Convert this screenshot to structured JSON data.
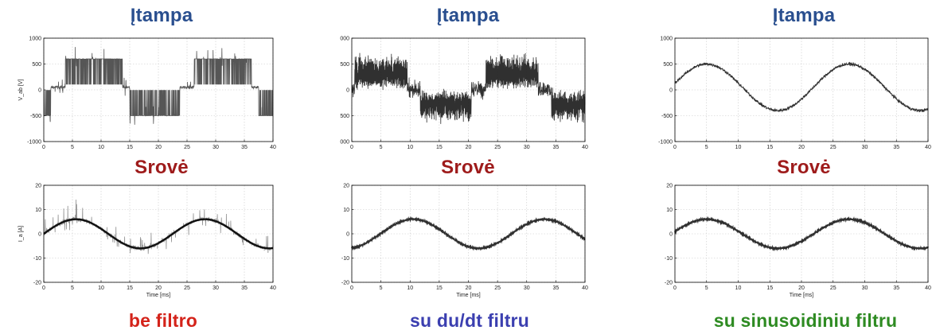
{
  "columns": [
    {
      "voltage_title": "Įtampa",
      "current_title": "Srovė",
      "caption": "be filtro",
      "caption_color": "#d4231a"
    },
    {
      "voltage_title": "Įtampa",
      "current_title": "Srovė",
      "caption": "su du/dt filtru",
      "caption_color": "#3b3fb0"
    },
    {
      "voltage_title": "Įtampa",
      "current_title": "Srovė",
      "caption": "su sinusoidiniu filtru",
      "caption_color": "#2e8b22"
    }
  ],
  "chart_data": [
    {
      "type": "line",
      "panel": "voltage-no-filter",
      "ylabel": "V_ab [V]",
      "xlabel": "",
      "xlim": [
        0,
        40
      ],
      "ylim": [
        -1000,
        1000
      ],
      "x_ticks": [
        "0",
        "5",
        "10",
        "15",
        "20",
        "25",
        "30",
        "35",
        "40"
      ],
      "y_ticks": [
        "1000",
        "500",
        "0",
        "-500",
        "-1000"
      ],
      "grid": true,
      "waveform": "six-step PWM with high-frequency switching noise",
      "x": [
        0,
        5,
        10,
        13.75,
        18.75,
        23.75,
        27.5,
        32.5,
        37.5,
        40
      ],
      "y": [
        -500,
        600,
        600,
        50,
        -500,
        50,
        600,
        600,
        50,
        -500
      ]
    },
    {
      "type": "line",
      "panel": "current-no-filter",
      "ylabel": "I_a [A]",
      "xlabel": "Time [ms]",
      "xlim": [
        0,
        40
      ],
      "ylim": [
        -20,
        20
      ],
      "x_ticks": [
        "0",
        "5",
        "10",
        "15",
        "20",
        "25",
        "30",
        "35",
        "40"
      ],
      "y_ticks": [
        "20",
        "10",
        "0",
        "-10",
        "-20"
      ],
      "grid": true,
      "waveform": "sine with large spiky noise",
      "amplitude": 6,
      "period_ms": 22.5,
      "x": [
        0,
        5,
        10,
        16.25,
        22.5,
        27.5,
        33.75,
        40
      ],
      "y": [
        0,
        5.9,
        2.5,
        -6,
        0,
        5.9,
        -1,
        -6
      ]
    },
    {
      "type": "line",
      "panel": "voltage-dudt-filter",
      "ylabel": "",
      "xlabel": "",
      "xlim": [
        0,
        40
      ],
      "ylim": [
        -1000,
        1000
      ],
      "x_ticks": [
        "0",
        "5",
        "10",
        "15",
        "20",
        "25",
        "30",
        "35",
        "40"
      ],
      "y_ticks": [
        "000",
        "500",
        "0",
        "500",
        "000"
      ],
      "grid": true,
      "waveform": "six-step PWM with dense ripple",
      "x": [
        0,
        5,
        10,
        15,
        20,
        25,
        30,
        35,
        40
      ],
      "y": [
        500,
        500,
        0,
        -500,
        0,
        500,
        0,
        -500,
        -500
      ]
    },
    {
      "type": "line",
      "panel": "current-dudt-filter",
      "ylabel": "",
      "xlabel": "Time [ms]",
      "xlim": [
        0,
        40
      ],
      "ylim": [
        -20,
        20
      ],
      "x_ticks": [
        "0",
        "5",
        "10",
        "15",
        "20",
        "25",
        "30",
        "35",
        "40"
      ],
      "y_ticks": [
        "20",
        "10",
        "0",
        "-10",
        "-20"
      ],
      "grid": true,
      "waveform": "clean sine",
      "amplitude": 6,
      "period_ms": 22.5,
      "x": [
        0,
        10.6,
        21.9,
        33.1,
        40
      ],
      "y": [
        -5.4,
        6,
        -6,
        6,
        -2
      ]
    },
    {
      "type": "line",
      "panel": "voltage-sine-filter",
      "ylabel": "",
      "xlabel": "",
      "xlim": [
        0,
        40
      ],
      "ylim": [
        -1000,
        1000
      ],
      "x_ticks": [
        "0",
        "5",
        "10",
        "15",
        "20",
        "25",
        "30",
        "35",
        "40"
      ],
      "y_ticks": [
        "1000",
        "500",
        "0",
        "-500",
        "-1000"
      ],
      "grid": true,
      "waveform": "sine with thin ripple band",
      "amplitude": 450,
      "offset": 50,
      "period_ms": 22.5,
      "x": [
        0,
        5,
        10,
        16.25,
        22.5,
        27.5,
        33.75,
        40
      ],
      "y": [
        100,
        500,
        200,
        -400,
        100,
        500,
        -200,
        -400
      ]
    },
    {
      "type": "line",
      "panel": "current-sine-filter",
      "ylabel": "",
      "xlabel": "Time [ms]",
      "xlim": [
        0,
        40
      ],
      "ylim": [
        -20,
        20
      ],
      "x_ticks": [
        "0",
        "5",
        "10",
        "15",
        "20",
        "25",
        "30",
        "35",
        "40"
      ],
      "y_ticks": [
        "20",
        "10",
        "0",
        "-10",
        "-20"
      ],
      "grid": true,
      "waveform": "clean sine",
      "amplitude": 6,
      "period_ms": 22.5,
      "x": [
        0,
        5,
        10,
        16.25,
        22.5,
        27.5,
        33.75,
        40
      ],
      "y": [
        1,
        6,
        3,
        -6,
        0,
        6,
        -2,
        -6
      ]
    }
  ]
}
